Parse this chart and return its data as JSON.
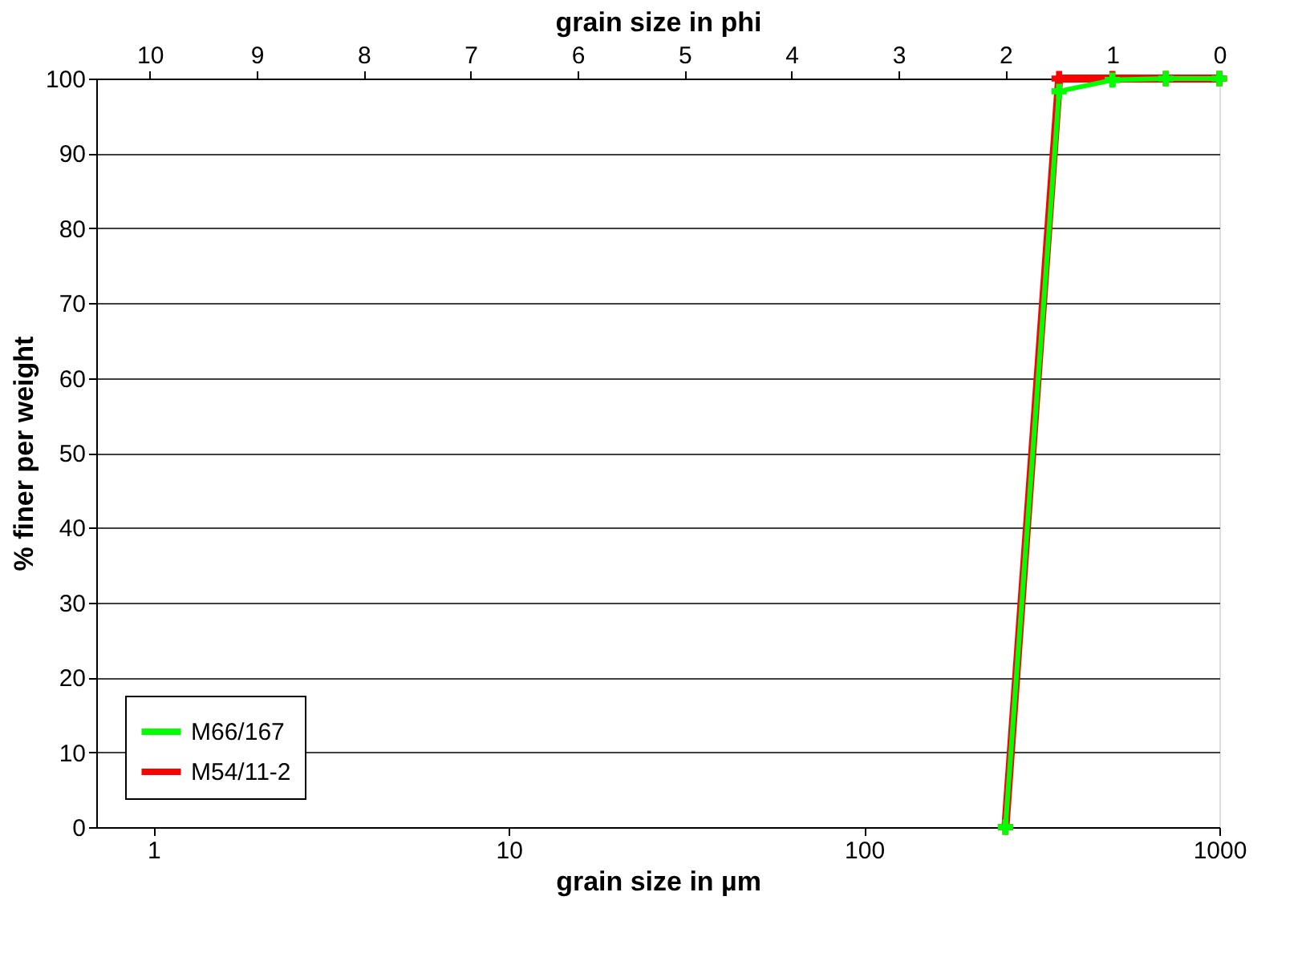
{
  "chart_data": {
    "type": "line",
    "xlabel": "grain size in µm",
    "ylabel": "% finer per weight",
    "x2label": "grain size in phi",
    "log": "x",
    "xlim": [
      0.6905,
      1000
    ],
    "xticks": [
      1,
      10,
      100,
      1000
    ],
    "x2lim": [
      10.5,
      0
    ],
    "x2ticks": [
      10,
      9,
      8,
      7,
      6,
      5,
      4,
      3,
      2,
      1,
      0
    ],
    "ylim": [
      0,
      100
    ],
    "yticks": [
      0,
      10,
      20,
      30,
      40,
      50,
      60,
      70,
      80,
      90,
      100
    ],
    "grid": "y",
    "legend": "bottom left",
    "marker": "cross",
    "line_style": "solid",
    "series": [
      {
        "name": "M66/167",
        "color": "#00ff00",
        "x": [
          250,
          354,
          500,
          707,
          1000
        ],
        "values": [
          0,
          98.3,
          99.8,
          100,
          100
        ]
      },
      {
        "name": "M54/11-2",
        "color": "#ff0000",
        "x": [
          250,
          354,
          500,
          707,
          1000
        ],
        "values": [
          0,
          100,
          100,
          100,
          100
        ]
      }
    ]
  }
}
